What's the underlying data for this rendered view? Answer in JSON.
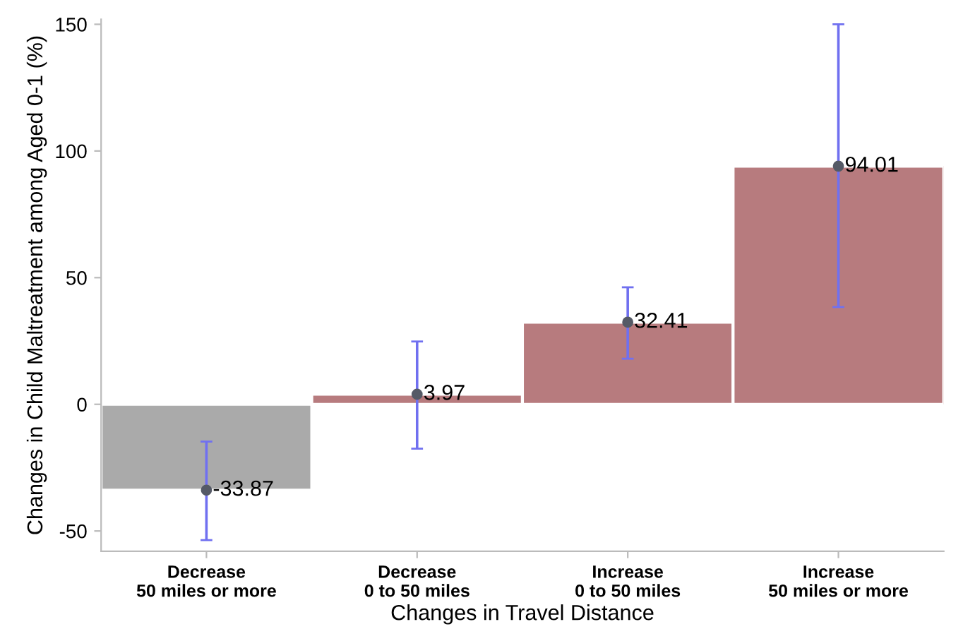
{
  "chart_data": {
    "type": "bar",
    "xlabel": "Changes in Travel Distance",
    "ylabel": "Changes in Child Maltreatment among Aged 0-1 (%)",
    "categories": [
      "Decrease\n50 miles or more",
      "Decrease\n0 to 50 miles",
      "Increase\n0 to 50 miles",
      "Increase\n50 miles or more"
    ],
    "series": [
      {
        "values": [
          -33.87,
          3.97,
          32.41,
          94.01
        ],
        "colors": [
          "#aaaaaa",
          "#b77b7e",
          "#b77b7e",
          "#b77b7e"
        ]
      },
      {
        "type": "scatter",
        "x": [
          "Decrease\n50 miles or more",
          "Decrease\n0 to 50 miles",
          "Increase\n0 to 50 miles",
          "Increase\n50 miles or more"
        ],
        "values": [
          -33.87,
          3.97,
          32.41,
          94.01
        ],
        "color": "#555a66",
        "value_labels": [
          "-33.87",
          "3.97",
          "32.41",
          "94.01"
        ],
        "errors": [
          [
            -53.6,
            -14.7
          ],
          [
            -17.5,
            24.8
          ],
          [
            18,
            46.2
          ],
          [
            38.4,
            150
          ]
        ]
      }
    ],
    "marker": "circle",
    "ylim": [
      -58,
      152
    ],
    "yticks": [
      -50,
      0,
      50,
      100,
      150
    ],
    "grid": false,
    "legend": false
  }
}
